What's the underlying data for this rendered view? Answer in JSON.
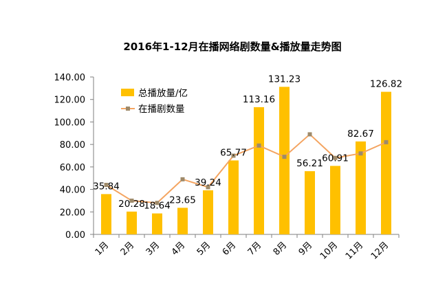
{
  "chart_data": {
    "type": "bar",
    "title": "2016年1-12月在播网络剧数量&播放量走势图",
    "categories": [
      "1月",
      "2月",
      "3月",
      "4月",
      "5月",
      "6月",
      "7月",
      "8月",
      "9月",
      "10月",
      "11月",
      "12月"
    ],
    "series": [
      {
        "name": "总播放量/亿",
        "type": "bar",
        "color": "#FFC000",
        "values": [
          35.84,
          20.28,
          18.64,
          23.65,
          39.24,
          65.77,
          113.16,
          131.23,
          56.21,
          60.91,
          82.67,
          126.82
        ],
        "labels": [
          "35.84",
          "20.28",
          "18.64",
          "23.65",
          "39.24",
          "65.77",
          "113.16",
          "131.23",
          "56.21",
          "60.91",
          "82.67",
          "126.82"
        ]
      },
      {
        "name": "在播剧数量",
        "type": "line",
        "color": "#F4A460",
        "marker_color": "#9E8A6A",
        "values": [
          44,
          30,
          28,
          49,
          42,
          70,
          79,
          69,
          89,
          68,
          72,
          82
        ]
      }
    ],
    "ylim": [
      0,
      140
    ],
    "yticks": [
      "0.00",
      "20.00",
      "40.00",
      "60.00",
      "80.00",
      "100.00",
      "120.00",
      "140.00"
    ],
    "ytick_values": [
      0,
      20,
      40,
      60,
      80,
      100,
      120,
      140
    ],
    "grid": false,
    "legend_position": "top-left"
  }
}
